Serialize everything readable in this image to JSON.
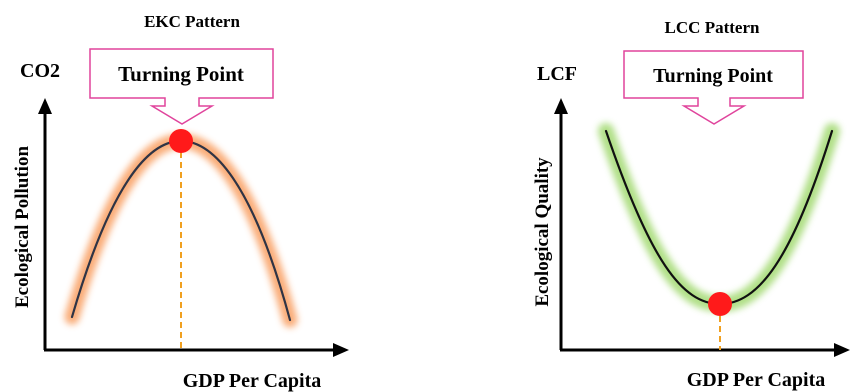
{
  "left_panel": {
    "title": "EKC Pattern",
    "y_abbrev": "CO2",
    "y_label": "Ecological Pollution",
    "x_label": "GDP Per Capita",
    "callout": "Turning Point",
    "glow_color": "#f9a46b",
    "curve_shape": "inverted-U"
  },
  "right_panel": {
    "title": "LCC Pattern",
    "y_abbrev": "LCF",
    "y_label": "Ecological Quality",
    "x_label": "GDP Per Capita",
    "callout": "Turning Point",
    "glow_color": "#a8dc7a",
    "curve_shape": "U"
  },
  "colors": {
    "curve": "#2f3445",
    "turning_point": "#ff1a1a",
    "callout_border": "#e0449c",
    "guide_line": "#f0a020",
    "axis": "#000000"
  }
}
